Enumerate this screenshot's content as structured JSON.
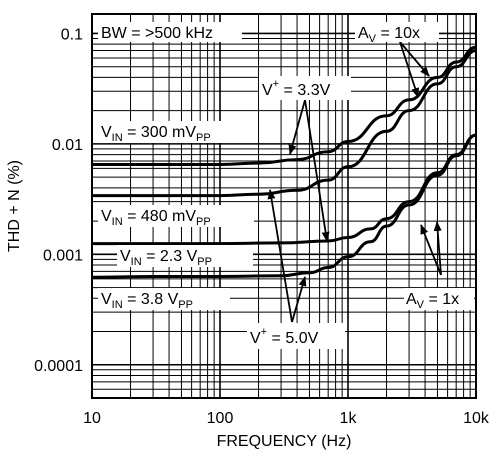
{
  "chart_data": {
    "type": "line",
    "title": "",
    "xlabel": "FREQUENCY (Hz)",
    "ylabel": "THD + N (%)",
    "x_scale": "log",
    "y_scale": "log",
    "xlim": [
      10,
      10000
    ],
    "ylim": [
      5e-05,
      0.15
    ],
    "grid": true,
    "x_ticks": [
      {
        "value": 10,
        "label": "10"
      },
      {
        "value": 100,
        "label": "100"
      },
      {
        "value": 1000,
        "label": "1k"
      },
      {
        "value": 10000,
        "label": "10k"
      }
    ],
    "y_ticks": [
      {
        "value": 0.1,
        "label": "0.1"
      },
      {
        "value": 0.01,
        "label": "0.01"
      },
      {
        "value": 0.001,
        "label": "0.001"
      },
      {
        "value": 0.0001,
        "label": "0.0001"
      }
    ],
    "series": [
      {
        "x": [
          10,
          30,
          100,
          200,
          400,
          700,
          1000,
          2000,
          3000,
          5000,
          7000,
          10000
        ],
        "y": [
          0.0065,
          0.0065,
          0.0065,
          0.0067,
          0.0072,
          0.0085,
          0.0105,
          0.018,
          0.025,
          0.04,
          0.055,
          0.075
        ]
      },
      {
        "x": [
          10,
          30,
          100,
          200,
          400,
          700,
          1000,
          2000,
          3000,
          5000,
          7000,
          10000
        ],
        "y": [
          0.0034,
          0.0034,
          0.0034,
          0.0035,
          0.0038,
          0.0047,
          0.0062,
          0.013,
          0.02,
          0.035,
          0.05,
          0.07
        ]
      },
      {
        "x": [
          10,
          30,
          100,
          300,
          700,
          1000,
          1500,
          2000,
          3000,
          5000,
          7000,
          10000
        ],
        "y": [
          0.00125,
          0.00125,
          0.00125,
          0.00127,
          0.00132,
          0.00142,
          0.0017,
          0.0021,
          0.003,
          0.0055,
          0.008,
          0.012
        ]
      },
      {
        "x": [
          10,
          30,
          100,
          300,
          500,
          700,
          1000,
          1500,
          2000,
          3000,
          5000,
          7000,
          10000
        ],
        "y": [
          0.00062,
          0.00063,
          0.00063,
          0.00064,
          0.00068,
          0.00076,
          0.00095,
          0.0013,
          0.0018,
          0.0028,
          0.0052,
          0.0078,
          0.012
        ]
      }
    ],
    "annotations": {
      "bw": "BW = >500 kHz",
      "av10_prefix": "A",
      "av10_sub": "V",
      "av10_suffix": " = 10x",
      "v33_prefix": "V",
      "v33_sup": "+",
      "v33_suffix": " = 3.3V",
      "vin300_prefix": "V",
      "vin300_sub": "IN",
      "vin300_mid": " = 300 mV",
      "vin300_sub2": "PP",
      "vin480_prefix": "V",
      "vin480_sub": "IN",
      "vin480_mid": " = 480 mV",
      "vin480_sub2": "PP",
      "vin23_prefix": "V",
      "vin23_sub": "IN",
      "vin23_mid": " = 2.3 V",
      "vin23_sub2": "PP",
      "vin38_prefix": "V",
      "vin38_sub": "IN",
      "vin38_mid": " = 3.8 V",
      "vin38_sub2": "PP",
      "av1_prefix": "A",
      "av1_sub": "V",
      "av1_suffix": " = 1x",
      "v50_prefix": "V",
      "v50_sup": "+",
      "v50_suffix": " = 5.0V"
    }
  }
}
